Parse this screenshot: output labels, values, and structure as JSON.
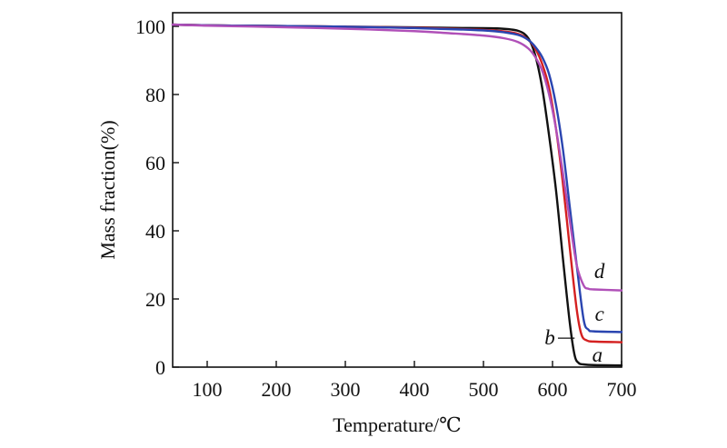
{
  "chart_data": {
    "type": "line",
    "title": "",
    "xlabel": "Temperature/℃",
    "ylabel": "Mass fraction(%)",
    "xlim": [
      50,
      700
    ],
    "ylim": [
      0,
      104
    ],
    "xticks": [
      100,
      200,
      300,
      400,
      500,
      600,
      700
    ],
    "yticks": [
      0,
      20,
      40,
      60,
      80,
      100
    ],
    "grid": false,
    "legend": "inline labels",
    "series": [
      {
        "name": "b",
        "color": "#111111",
        "x": [
          50,
          100,
          200,
          300,
          400,
          480,
          520,
          550,
          565,
          575,
          585,
          595,
          605,
          615,
          625,
          632,
          638,
          645,
          660,
          700
        ],
        "y": [
          100.5,
          100.3,
          100.1,
          99.9,
          99.7,
          99.5,
          99.4,
          98.7,
          96.5,
          91.5,
          82,
          68,
          52,
          32,
          13,
          3.5,
          1.2,
          0.8,
          0.6,
          0.5
        ]
      },
      {
        "name": "a",
        "color": "#d42020",
        "x": [
          50,
          100,
          200,
          300,
          400,
          480,
          520,
          550,
          565,
          575,
          585,
          595,
          605,
          615,
          625,
          635,
          642,
          650,
          660,
          700
        ],
        "y": [
          100.5,
          100.3,
          100.1,
          99.9,
          99.6,
          99.1,
          98.7,
          97.8,
          96,
          93.5,
          89,
          82,
          70,
          54,
          35,
          17,
          9.5,
          7.8,
          7.5,
          7.3
        ]
      },
      {
        "name": "c",
        "color": "#2a45b0",
        "x": [
          50,
          100,
          200,
          300,
          400,
          480,
          520,
          550,
          565,
          575,
          585,
          595,
          605,
          615,
          625,
          635,
          645,
          652,
          660,
          700
        ],
        "y": [
          100.5,
          100.3,
          100.1,
          99.9,
          99.5,
          99,
          98.5,
          97.5,
          96,
          94,
          91,
          86,
          77,
          64,
          47,
          30,
          14,
          11,
          10.5,
          10.3
        ]
      },
      {
        "name": "d",
        "color": "#b050b8",
        "x": [
          50,
          100,
          200,
          300,
          400,
          450,
          500,
          530,
          550,
          565,
          575,
          585,
          595,
          605,
          615,
          625,
          635,
          645,
          652,
          660,
          700
        ],
        "y": [
          100.5,
          100.2,
          99.8,
          99.3,
          98.6,
          98,
          97.3,
          96.5,
          95.4,
          93.5,
          91,
          87,
          80,
          70,
          57,
          43,
          30,
          24,
          23,
          22.8,
          22.5
        ]
      }
    ],
    "annotations": [
      {
        "label": "d",
        "x": 668,
        "y": 28
      },
      {
        "label": "c",
        "x": 668,
        "y": 15.5
      },
      {
        "label": "b",
        "x": 596,
        "y": 8.5
      },
      {
        "label": "a",
        "x": 665,
        "y": 3.5
      }
    ]
  }
}
